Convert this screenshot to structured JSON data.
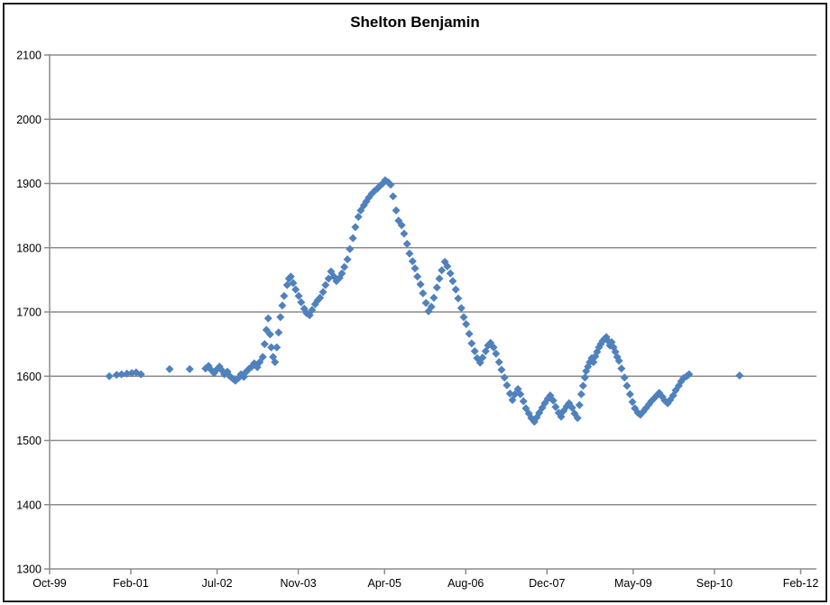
{
  "window": {
    "background_color": "#ffffff",
    "frame_border_color": "#1f1f1f"
  },
  "chart_data": {
    "type": "scatter",
    "title": "Shelton Benjamin",
    "xlabel": "",
    "ylabel": "",
    "legend": "none",
    "grid": "horizontal",
    "gridline_color": "#8c8c8c",
    "axis_color": "#8c8c8c",
    "marker": "diamond",
    "marker_color": "#4F81BD",
    "x_axis": {
      "range": [
        1999.75,
        2012.083
      ],
      "ticks": [
        {
          "label": "Oct-99",
          "t": 1999.75
        },
        {
          "label": "Feb-01",
          "t": 2001.083
        },
        {
          "label": "Jul-02",
          "t": 2002.5
        },
        {
          "label": "Nov-03",
          "t": 2003.833
        },
        {
          "label": "Apr-05",
          "t": 2005.25
        },
        {
          "label": "Aug-06",
          "t": 2006.583
        },
        {
          "label": "Dec-07",
          "t": 2007.917
        },
        {
          "label": "May-09",
          "t": 2009.333
        },
        {
          "label": "Sep-10",
          "t": 2010.667
        },
        {
          "label": "Feb-12",
          "t": 2012.083
        }
      ]
    },
    "y_axis": {
      "range": [
        1300,
        2100
      ],
      "ticks": [
        1300,
        1400,
        1500,
        1600,
        1700,
        1800,
        1900,
        2000,
        2100
      ]
    },
    "series": [
      {
        "name": "Shelton Benjamin",
        "points": [
          [
            2000.73,
            1600
          ],
          [
            2000.85,
            1602
          ],
          [
            2000.93,
            1603
          ],
          [
            2001.02,
            1604
          ],
          [
            2001.1,
            1605
          ],
          [
            2001.17,
            1606
          ],
          [
            2001.25,
            1603
          ],
          [
            2001.72,
            1611
          ],
          [
            2002.05,
            1611
          ],
          [
            2002.31,
            1612
          ],
          [
            2002.36,
            1616
          ],
          [
            2002.4,
            1610
          ],
          [
            2002.45,
            1605
          ],
          [
            2002.49,
            1610
          ],
          [
            2002.54,
            1615
          ],
          [
            2002.58,
            1609
          ],
          [
            2002.62,
            1603
          ],
          [
            2002.67,
            1607
          ],
          [
            2002.71,
            1600
          ],
          [
            2002.76,
            1596
          ],
          [
            2002.8,
            1593
          ],
          [
            2002.85,
            1597
          ],
          [
            2002.89,
            1603
          ],
          [
            2002.94,
            1599
          ],
          [
            2002.98,
            1607
          ],
          [
            2003.02,
            1611
          ],
          [
            2003.07,
            1615
          ],
          [
            2003.11,
            1620
          ],
          [
            2003.16,
            1614
          ],
          [
            2003.2,
            1622
          ],
          [
            2003.25,
            1630
          ],
          [
            2003.28,
            1650
          ],
          [
            2003.31,
            1672
          ],
          [
            2003.34,
            1690
          ],
          [
            2003.37,
            1665
          ],
          [
            2003.39,
            1645
          ],
          [
            2003.42,
            1630
          ],
          [
            2003.45,
            1622
          ],
          [
            2003.48,
            1645
          ],
          [
            2003.51,
            1668
          ],
          [
            2003.54,
            1692
          ],
          [
            2003.57,
            1710
          ],
          [
            2003.6,
            1725
          ],
          [
            2003.65,
            1742
          ],
          [
            2003.68,
            1752
          ],
          [
            2003.71,
            1755
          ],
          [
            2003.75,
            1745
          ],
          [
            2003.79,
            1735
          ],
          [
            2003.84,
            1725
          ],
          [
            2003.88,
            1715
          ],
          [
            2003.93,
            1705
          ],
          [
            2003.97,
            1698
          ],
          [
            2004.02,
            1695
          ],
          [
            2004.06,
            1703
          ],
          [
            2004.11,
            1712
          ],
          [
            2004.15,
            1718
          ],
          [
            2004.19,
            1722
          ],
          [
            2004.24,
            1731
          ],
          [
            2004.28,
            1742
          ],
          [
            2004.33,
            1752
          ],
          [
            2004.37,
            1763
          ],
          [
            2004.42,
            1755
          ],
          [
            2004.46,
            1748
          ],
          [
            2004.51,
            1753
          ],
          [
            2004.55,
            1760
          ],
          [
            2004.59,
            1770
          ],
          [
            2004.64,
            1782
          ],
          [
            2004.68,
            1798
          ],
          [
            2004.73,
            1815
          ],
          [
            2004.77,
            1832
          ],
          [
            2004.82,
            1848
          ],
          [
            2004.86,
            1858
          ],
          [
            2004.91,
            1866
          ],
          [
            2004.95,
            1872
          ],
          [
            2004.99,
            1878
          ],
          [
            2005.04,
            1884
          ],
          [
            2005.08,
            1888
          ],
          [
            2005.13,
            1892
          ],
          [
            2005.17,
            1896
          ],
          [
            2005.22,
            1900
          ],
          [
            2005.26,
            1905
          ],
          [
            2005.31,
            1902
          ],
          [
            2005.35,
            1898
          ],
          [
            2005.39,
            1880
          ],
          [
            2005.44,
            1858
          ],
          [
            2005.48,
            1842
          ],
          [
            2005.53,
            1835
          ],
          [
            2005.57,
            1822
          ],
          [
            2005.62,
            1806
          ],
          [
            2005.66,
            1791
          ],
          [
            2005.71,
            1779
          ],
          [
            2005.75,
            1768
          ],
          [
            2005.79,
            1755
          ],
          [
            2005.84,
            1743
          ],
          [
            2005.88,
            1729
          ],
          [
            2005.93,
            1714
          ],
          [
            2005.97,
            1701
          ],
          [
            2006.02,
            1708
          ],
          [
            2006.06,
            1722
          ],
          [
            2006.11,
            1738
          ],
          [
            2006.15,
            1752
          ],
          [
            2006.19,
            1765
          ],
          [
            2006.24,
            1778
          ],
          [
            2006.28,
            1771
          ],
          [
            2006.33,
            1760
          ],
          [
            2006.37,
            1748
          ],
          [
            2006.42,
            1735
          ],
          [
            2006.46,
            1721
          ],
          [
            2006.51,
            1706
          ],
          [
            2006.55,
            1692
          ],
          [
            2006.59,
            1681
          ],
          [
            2006.64,
            1666
          ],
          [
            2006.68,
            1651
          ],
          [
            2006.73,
            1639
          ],
          [
            2006.77,
            1628
          ],
          [
            2006.82,
            1621
          ],
          [
            2006.86,
            1629
          ],
          [
            2006.91,
            1639
          ],
          [
            2006.95,
            1648
          ],
          [
            2006.99,
            1652
          ],
          [
            2007.04,
            1645
          ],
          [
            2007.08,
            1635
          ],
          [
            2007.13,
            1622
          ],
          [
            2007.17,
            1610
          ],
          [
            2007.22,
            1598
          ],
          [
            2007.26,
            1586
          ],
          [
            2007.31,
            1573
          ],
          [
            2007.35,
            1563
          ],
          [
            2007.39,
            1572
          ],
          [
            2007.44,
            1580
          ],
          [
            2007.48,
            1572
          ],
          [
            2007.53,
            1561
          ],
          [
            2007.57,
            1550
          ],
          [
            2007.62,
            1542
          ],
          [
            2007.66,
            1535
          ],
          [
            2007.71,
            1529
          ],
          [
            2007.75,
            1536
          ],
          [
            2007.79,
            1543
          ],
          [
            2007.84,
            1551
          ],
          [
            2007.88,
            1558
          ],
          [
            2007.93,
            1565
          ],
          [
            2007.97,
            1570
          ],
          [
            2008.02,
            1562
          ],
          [
            2008.06,
            1552
          ],
          [
            2008.11,
            1543
          ],
          [
            2008.15,
            1537
          ],
          [
            2008.19,
            1546
          ],
          [
            2008.24,
            1553
          ],
          [
            2008.28,
            1558
          ],
          [
            2008.33,
            1551
          ],
          [
            2008.37,
            1542
          ],
          [
            2008.42,
            1535
          ],
          [
            2008.45,
            1555
          ],
          [
            2008.48,
            1572
          ],
          [
            2008.51,
            1585
          ],
          [
            2008.54,
            1598
          ],
          [
            2008.56,
            1608
          ],
          [
            2008.59,
            1615
          ],
          [
            2008.62,
            1622
          ],
          [
            2008.65,
            1628
          ],
          [
            2008.68,
            1622
          ],
          [
            2008.71,
            1631
          ],
          [
            2008.74,
            1638
          ],
          [
            2008.77,
            1645
          ],
          [
            2008.8,
            1650
          ],
          [
            2008.83,
            1655
          ],
          [
            2008.86,
            1658
          ],
          [
            2008.89,
            1661
          ],
          [
            2008.92,
            1655
          ],
          [
            2008.95,
            1648
          ],
          [
            2008.98,
            1653
          ],
          [
            2009.01,
            1645
          ],
          [
            2009.04,
            1638
          ],
          [
            2009.07,
            1630
          ],
          [
            2009.1,
            1624
          ],
          [
            2009.14,
            1612
          ],
          [
            2009.19,
            1598
          ],
          [
            2009.23,
            1585
          ],
          [
            2009.28,
            1572
          ],
          [
            2009.32,
            1560
          ],
          [
            2009.36,
            1550
          ],
          [
            2009.41,
            1543
          ],
          [
            2009.45,
            1540
          ],
          [
            2009.5,
            1545
          ],
          [
            2009.54,
            1550
          ],
          [
            2009.59,
            1556
          ],
          [
            2009.63,
            1561
          ],
          [
            2009.68,
            1566
          ],
          [
            2009.72,
            1570
          ],
          [
            2009.76,
            1574
          ],
          [
            2009.81,
            1568
          ],
          [
            2009.85,
            1562
          ],
          [
            2009.9,
            1558
          ],
          [
            2009.94,
            1563
          ],
          [
            2009.99,
            1570
          ],
          [
            2010.03,
            1578
          ],
          [
            2010.08,
            1585
          ],
          [
            2010.12,
            1592
          ],
          [
            2010.16,
            1597
          ],
          [
            2010.21,
            1600
          ],
          [
            2010.25,
            1603
          ],
          [
            2011.08,
            1601
          ]
        ]
      }
    ]
  }
}
